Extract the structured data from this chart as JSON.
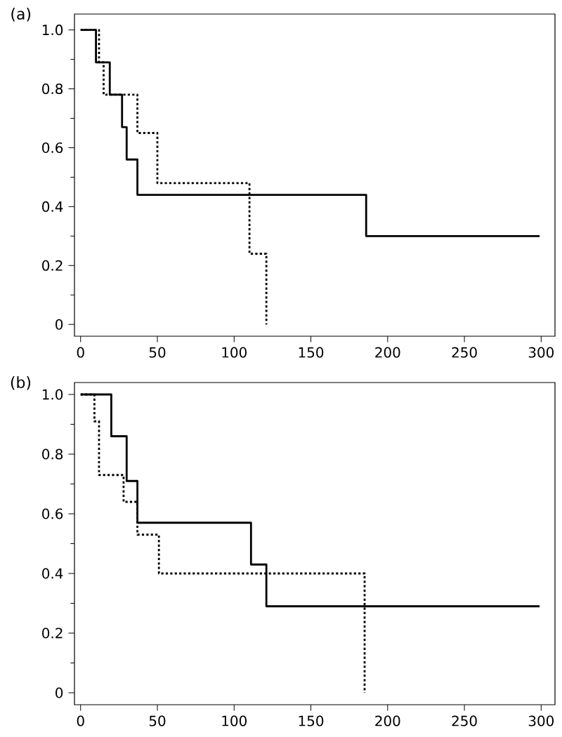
{
  "chart_data": [
    {
      "type": "step",
      "title": "(a)",
      "xlim": [
        -4,
        309
      ],
      "ylim": [
        -0.04,
        1.054
      ],
      "xticks": [
        0,
        50,
        100,
        150,
        200,
        250,
        300
      ],
      "yticks": [
        0,
        0.2,
        0.4,
        0.6,
        0.8,
        {
          "value": 1,
          "label": "1.0"
        }
      ],
      "grid": false,
      "marker": "none",
      "series": [
        {
          "color": "#000000",
          "line_style": "solid",
          "x": [
            0,
            10,
            19,
            27,
            30,
            37,
            186,
            299
          ],
          "values": [
            1,
            0.89,
            0.78,
            0.67,
            0.56,
            0.44,
            0.3,
            0.3
          ]
        },
        {
          "color": "#000000",
          "line_style": "dotted",
          "x": [
            0,
            12,
            15,
            37,
            50,
            110,
            121
          ],
          "values": [
            1,
            0.89,
            0.78,
            0.65,
            0.48,
            0.24,
            0
          ]
        }
      ]
    },
    {
      "type": "step",
      "title": "(b)",
      "xlim": [
        -4,
        309
      ],
      "ylim": [
        -0.04,
        1.04
      ],
      "xticks": [
        0,
        50,
        100,
        150,
        200,
        250,
        300
      ],
      "yticks": [
        0,
        0.2,
        0.4,
        0.6,
        0.8,
        {
          "value": 1,
          "label": "1.0"
        }
      ],
      "grid": false,
      "marker": "none",
      "series": [
        {
          "color": "#000000",
          "line_style": "solid",
          "x": [
            0,
            20,
            30,
            37,
            111,
            121,
            299
          ],
          "values": [
            1,
            0.86,
            0.71,
            0.57,
            0.43,
            0.29,
            0.29
          ]
        },
        {
          "color": "#000000",
          "line_style": "dotted",
          "x": [
            0,
            9,
            12,
            28,
            37,
            51,
            185
          ],
          "values": [
            1,
            0.91,
            0.73,
            0.64,
            0.53,
            0.4,
            0
          ]
        }
      ]
    }
  ]
}
